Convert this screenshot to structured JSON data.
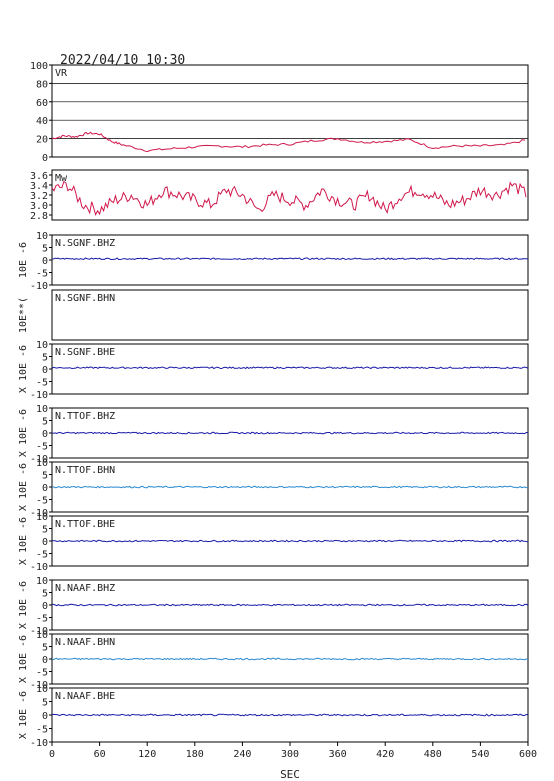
{
  "header": {
    "datetime": "2022/04/10 10:30"
  },
  "x_axis": {
    "label": "SEC",
    "range": [
      0,
      600
    ],
    "ticks": [
      "0",
      "60",
      "120",
      "180",
      "240",
      "300",
      "360",
      "420",
      "480",
      "540",
      "600"
    ]
  },
  "colors": {
    "vr": "#d0184c",
    "mw": "#d0184c",
    "trace_dark": "#1a1aa8",
    "trace_light": "#2a8ad0",
    "frame": "#000000"
  },
  "chart_data": [
    {
      "type": "line",
      "id": "vr",
      "label": "VR",
      "ylim": [
        0,
        100
      ],
      "yticks": [
        "0",
        "20",
        "40",
        "60",
        "80",
        "100"
      ],
      "grid": true,
      "series": [
        {
          "x": [
            0,
            15,
            30,
            45,
            60,
            75,
            90,
            120,
            150,
            180,
            210,
            240,
            270,
            300,
            330,
            360,
            390,
            420,
            450,
            480,
            510,
            540,
            570,
            600
          ],
          "values": [
            20,
            23,
            22,
            26,
            25,
            17,
            13,
            7,
            9,
            11,
            12,
            11,
            13,
            14,
            18,
            20,
            16,
            17,
            19,
            10,
            12,
            12,
            13,
            19
          ]
        }
      ]
    },
    {
      "type": "line",
      "id": "mw",
      "label": "Mw",
      "ylim": [
        2.7,
        3.7
      ],
      "yticks": [
        "2.8",
        "3.0",
        "3.2",
        "3.4",
        "3.6"
      ],
      "series": [
        {
          "x": [
            0,
            20,
            40,
            60,
            80,
            100,
            120,
            140,
            160,
            180,
            200,
            220,
            240,
            260,
            280,
            300,
            320,
            340,
            360,
            380,
            400,
            420,
            440,
            460,
            480,
            500,
            520,
            540,
            560,
            580,
            600
          ],
          "values": [
            3.3,
            3.4,
            3.0,
            2.9,
            3.1,
            3.2,
            3.0,
            3.3,
            3.2,
            3.1,
            3.0,
            3.3,
            3.2,
            2.9,
            3.2,
            3.1,
            3.0,
            3.3,
            3.1,
            3.0,
            3.2,
            2.9,
            3.2,
            3.3,
            3.2,
            3.0,
            3.1,
            3.3,
            3.2,
            3.4,
            3.2
          ]
        }
      ]
    },
    {
      "type": "line",
      "id": "sgnf-bhz",
      "label": "N.SGNF.BHZ",
      "ylabel": "10E -6",
      "ylim": [
        -10,
        10
      ],
      "yticks": [
        "10",
        "5",
        "0",
        "-5",
        "-10"
      ],
      "color": "dark",
      "level": 0.5
    },
    {
      "type": "line",
      "id": "sgnf-bhn",
      "label": "N.SGNF.BHN",
      "ylabel": "10E**(",
      "ylim": [],
      "yticks": [],
      "color": "none",
      "level": null
    },
    {
      "type": "line",
      "id": "sgnf-bhe",
      "label": "N.SGNF.BHE",
      "ylabel": "X 10E -6",
      "ylim": [
        -10,
        10
      ],
      "yticks": [
        "10",
        "5",
        "0",
        "-5",
        "-10"
      ],
      "color": "dark",
      "level": 0.5
    },
    {
      "type": "line",
      "id": "ttof-bhz",
      "label": "N.TTOF.BHZ",
      "ylabel": "X 10E -6",
      "ylim": [
        -10,
        10
      ],
      "yticks": [
        "10",
        "5",
        "0",
        "-5",
        "-10"
      ],
      "color": "dark",
      "level": 0
    },
    {
      "type": "line",
      "id": "ttof-bhn",
      "label": "N.TTOF.BHN",
      "ylabel": "X 10E -6",
      "ylim": [
        -10,
        10
      ],
      "yticks": [
        "10",
        "5",
        "0",
        "-5",
        "-10"
      ],
      "color": "light",
      "level": 0
    },
    {
      "type": "line",
      "id": "ttof-bhe",
      "label": "N.TTOF.BHE",
      "ylabel": "X 10E -6",
      "ylim": [
        -10,
        10
      ],
      "yticks": [
        "10",
        "5",
        "0",
        "-5",
        "-10"
      ],
      "color": "dark",
      "level": 0
    },
    {
      "type": "line",
      "id": "naaf-bhz",
      "label": "N.NAAF.BHZ",
      "ylabel": "X 10E -6",
      "ylim": [
        -10,
        10
      ],
      "yticks": [
        "10",
        "5",
        "0",
        "-5",
        "-10"
      ],
      "color": "dark",
      "level": 0
    },
    {
      "type": "line",
      "id": "naaf-bhn",
      "label": "N.NAAF.BHN",
      "ylabel": "X 10E -6",
      "ylim": [
        -10,
        10
      ],
      "yticks": [
        "10",
        "5",
        "0",
        "-5",
        "-10"
      ],
      "color": "light",
      "level": 0
    },
    {
      "type": "line",
      "id": "naaf-bhe",
      "label": "N.NAAF.BHE",
      "ylabel": "X 10E -6",
      "ylim": [
        -10,
        10
      ],
      "yticks": [
        "10",
        "5",
        "0",
        "-5",
        "-10"
      ],
      "color": "dark",
      "level": 0
    }
  ]
}
